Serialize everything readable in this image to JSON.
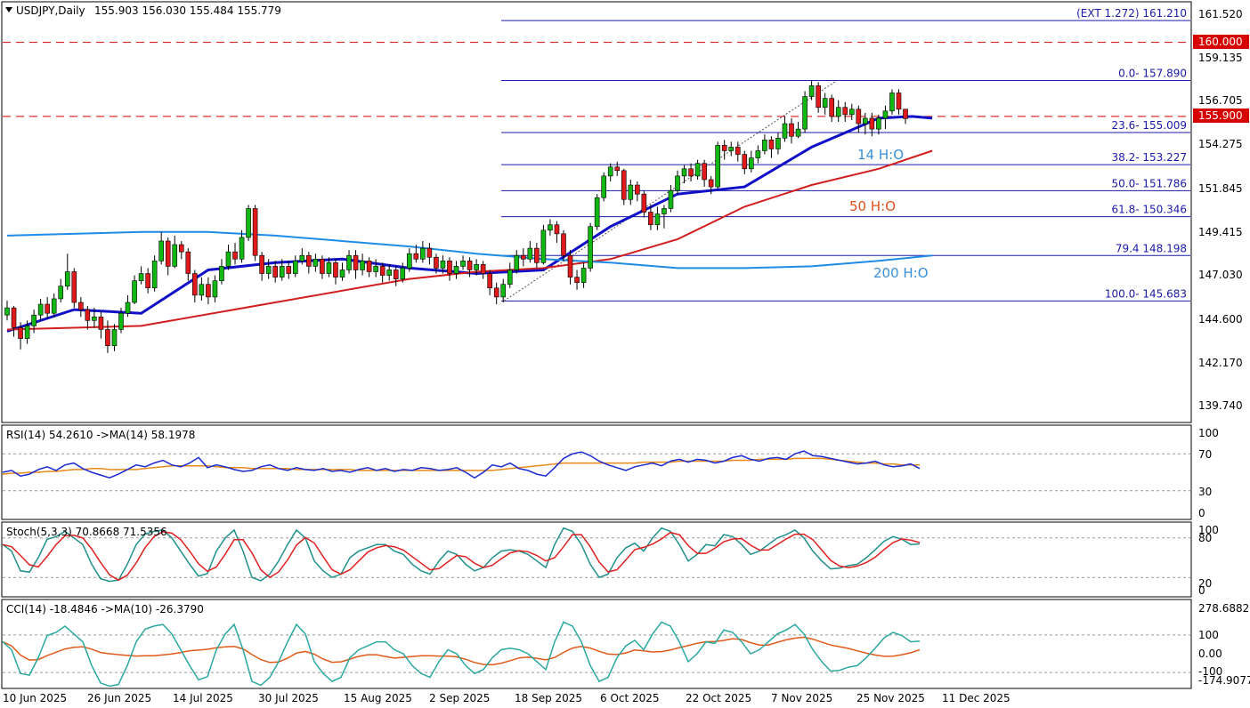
{
  "header": {
    "symbol": "USDJPY,Daily",
    "ohlc": "155.903 156.030 155.484 155.779"
  },
  "price_axis": {
    "ticks": [
      "161.520",
      "159.135",
      "156.705",
      "154.275",
      "151.845",
      "149.415",
      "147.030",
      "144.600",
      "142.170",
      "139.740"
    ],
    "markers": [
      {
        "label": "160.000",
        "color": "#d60000"
      },
      {
        "label": "155.900",
        "color": "#d60000"
      }
    ]
  },
  "fibonacci": [
    {
      "label": "(EXT 1.272)  161.210",
      "value": 161.21
    },
    {
      "label": "0.0- 157.890",
      "value": 157.89
    },
    {
      "label": "23.6- 155.009",
      "value": 155.009
    },
    {
      "label": "38.2- 153.227",
      "value": 153.227
    },
    {
      "label": "50.0- 151.786",
      "value": 151.786
    },
    {
      "label": "61.8- 150.346",
      "value": 150.346
    },
    {
      "label": "79.4  148.198",
      "value": 148.198
    },
    {
      "label": "100.0- 145.683",
      "value": 145.683
    }
  ],
  "ma_labels": [
    {
      "text": "14 H:O",
      "color": "#3a8fd6"
    },
    {
      "text": "50 H:O",
      "color": "#e0501e"
    },
    {
      "text": "200 H:O",
      "color": "#3a8fd6"
    }
  ],
  "panels": {
    "rsi": {
      "label": "RSI(14) 54.2610  ->MA(14) 58.1978",
      "ticks": [
        "100",
        "70",
        "30",
        "0"
      ]
    },
    "stoch": {
      "label": "Stoch(5,3,3) 70.8668 71.5356",
      "ticks": [
        "100",
        "80",
        "20",
        "0"
      ]
    },
    "cci": {
      "label": "CCI(14) -18.4846  ->MA(10) -26.3790",
      "ticks": [
        "278.6882",
        "100",
        "0.00",
        "-100",
        "-174.9077"
      ]
    }
  },
  "time_axis": [
    "10 Jun 2025",
    "26 Jun 2025",
    "14 Jul 2025",
    "30 Jul 2025",
    "15 Aug 2025",
    "2 Sep 2025",
    "18 Sep 2025",
    "6 Oct 2025",
    "22 Oct 2025",
    "7 Nov 2025",
    "25 Nov 2025",
    "11 Dec 2025"
  ],
  "chart_data": {
    "type": "line",
    "ylim": [
      139.0,
      162.2
    ],
    "horizontal_lines": [
      160.0,
      155.9
    ],
    "series": [
      {
        "name": "14 H:O",
        "color": "#1010c8",
        "x": [
          0,
          10,
          20,
          30,
          40,
          50,
          60,
          70,
          80,
          90,
          100,
          110,
          120,
          125,
          130,
          135,
          138
        ],
        "values": [
          144.0,
          145.2,
          145.0,
          147.4,
          147.8,
          148.0,
          147.5,
          147.2,
          147.4,
          149.8,
          151.6,
          152.0,
          154.2,
          155.0,
          155.8,
          155.9,
          155.8
        ]
      },
      {
        "name": "50 H:O",
        "color": "#d21e1e",
        "x": [
          0,
          20,
          40,
          60,
          70,
          80,
          90,
          100,
          110,
          120,
          130,
          138
        ],
        "values": [
          144.1,
          144.3,
          145.6,
          146.9,
          147.3,
          147.5,
          148.0,
          149.1,
          150.9,
          152.1,
          153.0,
          154.0
        ]
      },
      {
        "name": "200 H:O",
        "color": "#1e8ce6",
        "x": [
          0,
          20,
          30,
          40,
          60,
          70,
          80,
          90,
          100,
          110,
          120,
          130,
          138
        ],
        "values": [
          149.3,
          149.5,
          149.5,
          149.3,
          148.7,
          148.3,
          148.0,
          147.8,
          147.5,
          147.5,
          147.6,
          147.9,
          148.2
        ]
      }
    ],
    "candles": [
      [
        144.9,
        145.3,
        145.7,
        144.6
      ],
      [
        145.3,
        144.2,
        145.4,
        143.7
      ],
      [
        144.2,
        143.6,
        144.5,
        143.0
      ],
      [
        143.6,
        144.3,
        144.6,
        143.3
      ],
      [
        144.3,
        144.9,
        145.2,
        143.9
      ],
      [
        144.9,
        145.5,
        145.8,
        144.6
      ],
      [
        145.5,
        145.0,
        145.9,
        144.7
      ],
      [
        145.0,
        145.8,
        146.1,
        144.8
      ],
      [
        145.8,
        146.5,
        146.9,
        145.6
      ],
      [
        146.5,
        147.3,
        148.3,
        146.3
      ],
      [
        147.3,
        145.6,
        147.5,
        145.3
      ],
      [
        145.6,
        145.2,
        145.9,
        144.8
      ],
      [
        145.2,
        144.6,
        145.4,
        144.1
      ],
      [
        144.6,
        144.8,
        145.3,
        144.2
      ],
      [
        144.8,
        144.1,
        145.1,
        143.6
      ],
      [
        144.1,
        143.2,
        144.6,
        142.8
      ],
      [
        143.2,
        144.1,
        144.4,
        142.9
      ],
      [
        144.1,
        145.0,
        145.3,
        143.9
      ],
      [
        145.0,
        145.6,
        146.0,
        144.8
      ],
      [
        145.6,
        146.8,
        147.1,
        145.5
      ],
      [
        146.8,
        147.2,
        147.6,
        146.6
      ],
      [
        147.2,
        146.4,
        147.5,
        146.1
      ],
      [
        146.4,
        147.9,
        148.2,
        146.2
      ],
      [
        147.9,
        149.0,
        149.5,
        147.7
      ],
      [
        149.0,
        147.6,
        149.2,
        147.1
      ],
      [
        147.6,
        148.8,
        149.3,
        147.5
      ],
      [
        148.8,
        148.4,
        149.0,
        148.0
      ],
      [
        148.4,
        147.2,
        148.6,
        146.8
      ],
      [
        147.2,
        146.0,
        147.4,
        145.6
      ],
      [
        146.0,
        146.6,
        147.0,
        145.7
      ],
      [
        146.6,
        145.9,
        147.0,
        145.5
      ],
      [
        145.9,
        146.8,
        147.1,
        145.6
      ],
      [
        146.8,
        147.6,
        148.0,
        146.6
      ],
      [
        147.6,
        148.4,
        148.8,
        147.4
      ],
      [
        148.4,
        148.0,
        148.9,
        147.7
      ],
      [
        148.0,
        149.2,
        149.6,
        147.8
      ],
      [
        149.2,
        150.8,
        151.0,
        149.0
      ],
      [
        150.8,
        148.2,
        151.0,
        147.9
      ],
      [
        148.2,
        147.2,
        148.4,
        146.8
      ],
      [
        147.2,
        147.6,
        148.0,
        146.9
      ],
      [
        147.6,
        147.0,
        147.9,
        146.7
      ],
      [
        147.0,
        147.6,
        148.0,
        146.8
      ],
      [
        147.6,
        147.2,
        147.9,
        146.9
      ],
      [
        147.2,
        147.9,
        148.2,
        147.0
      ],
      [
        147.9,
        148.2,
        148.6,
        147.7
      ],
      [
        148.2,
        147.6,
        148.4,
        147.2
      ],
      [
        147.6,
        148.0,
        148.3,
        147.3
      ],
      [
        148.0,
        147.2,
        148.2,
        146.9
      ],
      [
        147.2,
        147.8,
        148.1,
        147.0
      ],
      [
        147.8,
        147.0,
        148.0,
        146.6
      ],
      [
        147.0,
        147.4,
        147.8,
        146.8
      ],
      [
        147.4,
        148.2,
        148.5,
        147.2
      ],
      [
        148.2,
        147.4,
        148.5,
        146.9
      ],
      [
        147.4,
        147.9,
        148.3,
        147.1
      ],
      [
        147.9,
        147.3,
        148.1,
        147.0
      ],
      [
        147.3,
        147.6,
        148.0,
        147.0
      ],
      [
        147.6,
        147.1,
        147.8,
        146.7
      ],
      [
        147.1,
        147.4,
        147.7,
        146.8
      ],
      [
        147.4,
        146.9,
        147.6,
        146.5
      ],
      [
        146.9,
        147.5,
        147.8,
        146.7
      ],
      [
        147.5,
        148.3,
        148.6,
        147.3
      ],
      [
        148.3,
        148.0,
        148.8,
        147.8
      ],
      [
        148.0,
        148.6,
        149.0,
        147.8
      ],
      [
        148.6,
        148.1,
        148.9,
        147.7
      ],
      [
        148.1,
        147.5,
        148.3,
        147.2
      ],
      [
        147.5,
        147.9,
        148.2,
        147.2
      ],
      [
        147.9,
        147.2,
        148.1,
        146.8
      ],
      [
        147.2,
        147.6,
        147.9,
        146.9
      ],
      [
        147.6,
        147.9,
        148.2,
        147.4
      ],
      [
        147.9,
        147.4,
        148.1,
        147.0
      ],
      [
        147.4,
        147.7,
        148.0,
        147.1
      ],
      [
        147.7,
        147.2,
        147.9,
        146.9
      ],
      [
        147.2,
        146.4,
        147.4,
        146.0
      ],
      [
        146.4,
        145.9,
        146.7,
        145.5
      ],
      [
        145.9,
        146.6,
        146.9,
        145.6
      ],
      [
        146.6,
        147.4,
        147.8,
        146.4
      ],
      [
        147.4,
        148.2,
        148.5,
        147.2
      ],
      [
        148.2,
        148.0,
        148.6,
        147.6
      ],
      [
        148.0,
        148.6,
        149.0,
        147.8
      ],
      [
        148.6,
        147.8,
        148.9,
        147.5
      ],
      [
        147.8,
        149.6,
        149.9,
        147.7
      ],
      [
        149.6,
        149.9,
        150.2,
        149.3
      ],
      [
        149.9,
        149.4,
        150.1,
        148.9
      ],
      [
        149.4,
        148.2,
        149.6,
        147.9
      ],
      [
        148.2,
        147.0,
        148.5,
        146.6
      ],
      [
        147.0,
        146.7,
        147.4,
        146.3
      ],
      [
        146.7,
        147.5,
        147.8,
        146.4
      ],
      [
        147.5,
        149.8,
        150.0,
        147.3
      ],
      [
        149.8,
        151.4,
        151.6,
        149.6
      ],
      [
        151.4,
        152.6,
        152.8,
        151.2
      ],
      [
        152.6,
        153.1,
        153.3,
        152.3
      ],
      [
        153.1,
        152.9,
        153.4,
        152.6
      ],
      [
        152.9,
        151.3,
        153.0,
        151.0
      ],
      [
        151.3,
        152.1,
        152.4,
        151.0
      ],
      [
        152.1,
        151.6,
        152.3,
        151.2
      ],
      [
        151.6,
        150.6,
        151.8,
        150.3
      ],
      [
        150.6,
        149.9,
        151.0,
        149.6
      ],
      [
        149.9,
        150.5,
        150.9,
        149.6
      ],
      [
        150.5,
        150.8,
        151.0,
        149.7
      ],
      [
        150.8,
        151.8,
        152.1,
        150.6
      ],
      [
        151.8,
        152.6,
        152.9,
        151.6
      ],
      [
        152.6,
        153.0,
        153.2,
        152.2
      ],
      [
        153.0,
        152.6,
        153.3,
        152.3
      ],
      [
        152.6,
        153.3,
        153.5,
        152.4
      ],
      [
        153.3,
        152.4,
        153.5,
        152.0
      ],
      [
        152.4,
        152.0,
        152.6,
        151.6
      ],
      [
        152.0,
        154.3,
        154.5,
        151.9
      ],
      [
        154.3,
        154.0,
        154.6,
        153.5
      ],
      [
        154.0,
        154.2,
        154.5,
        153.7
      ],
      [
        154.2,
        153.8,
        154.5,
        153.4
      ],
      [
        153.8,
        153.0,
        154.0,
        152.7
      ],
      [
        153.0,
        153.6,
        154.0,
        152.8
      ],
      [
        153.6,
        154.0,
        154.3,
        153.3
      ],
      [
        154.0,
        154.6,
        154.9,
        153.8
      ],
      [
        154.6,
        154.1,
        154.8,
        153.6
      ],
      [
        154.1,
        154.7,
        155.0,
        153.8
      ],
      [
        154.7,
        155.5,
        155.9,
        154.5
      ],
      [
        155.5,
        154.8,
        155.8,
        154.4
      ],
      [
        154.8,
        155.2,
        155.6,
        154.7
      ],
      [
        155.2,
        157.0,
        157.3,
        155.0
      ],
      [
        157.0,
        157.6,
        157.89,
        156.8
      ],
      [
        157.6,
        156.4,
        157.8,
        156.1
      ],
      [
        156.4,
        156.9,
        157.2,
        156.0
      ],
      [
        156.9,
        155.9,
        157.1,
        155.6
      ],
      [
        155.9,
        156.4,
        156.8,
        155.6
      ],
      [
        156.4,
        156.0,
        156.7,
        155.6
      ],
      [
        156.0,
        156.3,
        156.6,
        155.7
      ],
      [
        156.3,
        155.5,
        156.5,
        155.0
      ],
      [
        155.5,
        155.8,
        156.1,
        154.9
      ],
      [
        155.8,
        155.2,
        156.1,
        154.8
      ],
      [
        155.2,
        155.8,
        156.0,
        154.9
      ],
      [
        155.8,
        156.2,
        156.5,
        155.2
      ],
      [
        156.2,
        157.2,
        157.4,
        156.0
      ],
      [
        157.2,
        156.3,
        157.4,
        156.0
      ],
      [
        156.3,
        155.78,
        156.03,
        155.48
      ]
    ],
    "rsi": [
      50,
      52,
      46,
      48,
      53,
      56,
      52,
      58,
      60,
      54,
      50,
      47,
      44,
      48,
      53,
      58,
      56,
      60,
      63,
      58,
      56,
      60,
      66,
      55,
      58,
      56,
      53,
      51,
      52,
      56,
      58,
      54,
      52,
      55,
      53,
      52,
      54,
      51,
      52,
      50,
      53,
      55,
      52,
      54,
      51,
      53,
      52,
      55,
      54,
      52,
      53,
      55,
      50,
      44,
      50,
      58,
      56,
      60,
      54,
      52,
      48,
      46,
      55,
      65,
      70,
      72,
      68,
      62,
      58,
      55,
      52,
      56,
      58,
      60,
      57,
      62,
      64,
      61,
      64,
      63,
      60,
      62,
      66,
      68,
      64,
      62,
      65,
      66,
      64,
      70,
      73,
      68,
      67,
      65,
      63,
      61,
      59,
      60,
      62,
      58,
      56,
      57,
      59,
      54
    ],
    "rsi_ma": [
      48,
      49,
      49,
      50,
      50,
      51,
      51,
      52,
      53,
      53,
      54,
      54,
      53,
      53,
      53,
      53,
      54,
      55,
      56,
      57,
      57,
      57,
      57,
      57,
      56,
      55,
      55,
      55,
      54,
      54,
      54,
      54,
      54,
      53,
      53,
      53,
      53,
      53,
      53,
      53,
      52,
      52,
      52,
      52,
      52,
      52,
      52,
      52,
      52,
      52,
      52,
      52,
      52,
      52,
      52,
      52,
      53,
      54,
      55,
      56,
      57,
      58,
      59,
      60,
      60,
      60,
      60,
      60,
      60,
      60,
      60,
      60,
      61,
      61,
      61,
      61,
      62,
      62,
      62,
      62,
      62,
      62,
      63,
      63,
      63,
      64,
      64,
      64,
      64,
      65,
      65,
      65,
      65,
      64,
      63,
      62,
      61,
      60,
      60,
      59,
      59,
      58,
      58,
      58
    ],
    "stoch": [
      70,
      60,
      30,
      28,
      50,
      78,
      82,
      90,
      80,
      70,
      40,
      18,
      14,
      16,
      40,
      70,
      86,
      90,
      92,
      80,
      60,
      40,
      22,
      26,
      60,
      80,
      92,
      60,
      20,
      15,
      25,
      45,
      70,
      92,
      80,
      45,
      30,
      20,
      25,
      50,
      60,
      65,
      70,
      70,
      60,
      55,
      40,
      30,
      25,
      45,
      60,
      55,
      40,
      30,
      35,
      50,
      60,
      62,
      60,
      55,
      45,
      35,
      70,
      95,
      90,
      70,
      40,
      20,
      25,
      50,
      65,
      72,
      60,
      80,
      95,
      90,
      70,
      45,
      55,
      70,
      68,
      85,
      82,
      70,
      55,
      60,
      70,
      80,
      85,
      92,
      80,
      60,
      45,
      33,
      34,
      38,
      40,
      50,
      62,
      75,
      82,
      78,
      70,
      71
    ]
  }
}
